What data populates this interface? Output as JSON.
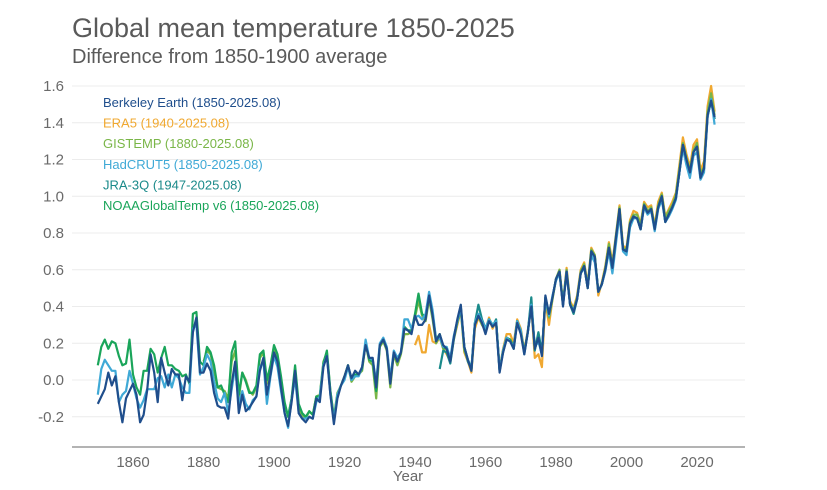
{
  "chart_data": {
    "type": "line",
    "title": "Global mean temperature 1850-2025",
    "subtitle": "Difference from 1850-1900 average",
    "xlabel": "Year",
    "ylabel": "",
    "xlim": [
      1843,
      2033
    ],
    "ylim": [
      -0.37,
      1.65
    ],
    "xticks": [
      1860,
      1880,
      1900,
      1920,
      1940,
      1960,
      1980,
      2000,
      2020
    ],
    "yticks": [
      -0.2,
      0.0,
      0.2,
      0.4,
      0.6,
      0.8,
      1.0,
      1.2,
      1.4,
      1.6
    ],
    "ytick_labels": [
      "-0.2",
      "0.0",
      "0.2",
      "0.4",
      "0.6",
      "0.8",
      "1.0",
      "1.2",
      "1.4",
      "1.6"
    ],
    "grid": "horizontal",
    "legend_position": "top-left",
    "series": [
      {
        "name": "ERA5 (1940-2025.08)",
        "color": "#f0a830",
        "start_year": 1940,
        "values": [
          0.19,
          0.24,
          0.15,
          0.15,
          0.3,
          0.21,
          0.2,
          0.23,
          0.17,
          0.14,
          0.1,
          0.22,
          0.3,
          0.38,
          0.15,
          0.1,
          0.04,
          0.28,
          0.34,
          0.3,
          0.27,
          0.34,
          0.28,
          0.32,
          0.06,
          0.17,
          0.25,
          0.25,
          0.2,
          0.33,
          0.28,
          0.16,
          0.27,
          0.4,
          0.12,
          0.14,
          0.07,
          0.43,
          0.3,
          0.44,
          0.55,
          0.6,
          0.42,
          0.61,
          0.43,
          0.39,
          0.46,
          0.6,
          0.64,
          0.52,
          0.72,
          0.68,
          0.46,
          0.53,
          0.62,
          0.75,
          0.64,
          0.79,
          0.95,
          0.73,
          0.72,
          0.87,
          0.92,
          0.91,
          0.85,
          0.97,
          0.94,
          0.95,
          0.84,
          0.97,
          1.02,
          0.89,
          0.93,
          0.97,
          1.02,
          1.17,
          1.32,
          1.23,
          1.16,
          1.28,
          1.31,
          1.14,
          1.19,
          1.49,
          1.6,
          1.46
        ]
      },
      {
        "name": "GISTEMP (1880-2025.08)",
        "color": "#7ab648",
        "start_year": 1880,
        "values": [
          0.1,
          0.16,
          0.14,
          0.05,
          -0.04,
          -0.05,
          -0.06,
          -0.1,
          0.1,
          0.16,
          -0.1,
          0.04,
          0.0,
          -0.06,
          -0.08,
          -0.04,
          0.12,
          0.15,
          -0.02,
          0.07,
          0.18,
          0.12,
          0.0,
          -0.13,
          -0.2,
          -0.1,
          0.05,
          -0.16,
          -0.19,
          -0.21,
          -0.17,
          -0.19,
          -0.09,
          -0.08,
          0.1,
          0.15,
          -0.06,
          -0.2,
          -0.07,
          -0.03,
          0.02,
          0.08,
          -0.01,
          0.02,
          0.03,
          0.05,
          0.2,
          0.1,
          0.08,
          -0.1,
          0.18,
          0.21,
          0.16,
          -0.04,
          0.14,
          0.08,
          0.14,
          0.25,
          0.25,
          0.26,
          0.34,
          0.43,
          0.35,
          0.32,
          0.44,
          0.33,
          0.2,
          0.24,
          0.17,
          0.17,
          0.1,
          0.23,
          0.31,
          0.38,
          0.16,
          0.11,
          0.05,
          0.3,
          0.35,
          0.3,
          0.27,
          0.33,
          0.3,
          0.32,
          0.06,
          0.15,
          0.23,
          0.22,
          0.18,
          0.32,
          0.27,
          0.15,
          0.26,
          0.41,
          0.18,
          0.22,
          0.15,
          0.44,
          0.34,
          0.44,
          0.55,
          0.6,
          0.42,
          0.6,
          0.42,
          0.38,
          0.45,
          0.59,
          0.63,
          0.51,
          0.71,
          0.68,
          0.48,
          0.52,
          0.61,
          0.74,
          0.62,
          0.78,
          0.94,
          0.72,
          0.71,
          0.86,
          0.9,
          0.9,
          0.84,
          0.96,
          0.92,
          0.94,
          0.83,
          0.95,
          1.01,
          0.88,
          0.92,
          0.95,
          1.01,
          1.15,
          1.29,
          1.21,
          1.14,
          1.25,
          1.29,
          1.12,
          1.16,
          1.46,
          1.56,
          1.44
        ]
      },
      {
        "name": "NOAAGlobalTemp v6 (1850-2025.08)",
        "color": "#1aa55a",
        "start_year": 1850,
        "values": [
          0.08,
          0.18,
          0.22,
          0.17,
          0.21,
          0.2,
          0.13,
          0.08,
          0.09,
          0.22,
          0.03,
          -0.04,
          -0.08,
          0.05,
          0.05,
          0.17,
          0.14,
          0.04,
          0.12,
          0.18,
          0.08,
          0.08,
          0.06,
          0.05,
          0.02,
          0.03,
          -0.02,
          0.36,
          0.37,
          0.1,
          0.08,
          0.18,
          0.15,
          0.08,
          -0.04,
          -0.03,
          -0.08,
          -0.12,
          0.15,
          0.21,
          -0.08,
          0.04,
          -0.01,
          -0.07,
          -0.07,
          -0.03,
          0.14,
          0.16,
          0.0,
          0.08,
          0.19,
          0.14,
          0.02,
          -0.12,
          -0.2,
          -0.1,
          0.08,
          -0.13,
          -0.18,
          -0.2,
          -0.17,
          -0.19,
          -0.09,
          -0.09,
          0.09,
          0.16,
          -0.06,
          -0.21,
          -0.08,
          -0.03,
          0.02,
          0.08,
          0.0,
          0.03,
          0.03,
          0.06,
          0.2,
          0.11,
          0.1,
          -0.06,
          0.19,
          0.22,
          0.17,
          0.0,
          0.15,
          0.1,
          0.15,
          0.29,
          0.27,
          0.27,
          0.36,
          0.47,
          0.36,
          0.34,
          0.47,
          0.36,
          0.22,
          0.25,
          0.18,
          0.17,
          0.11,
          0.23,
          0.32,
          0.4,
          0.18,
          0.11,
          0.06,
          0.31,
          0.36,
          0.32,
          0.27,
          0.33,
          0.3,
          0.32,
          0.05,
          0.16,
          0.23,
          0.22,
          0.18,
          0.32,
          0.26,
          0.15,
          0.26,
          0.42,
          0.17,
          0.23,
          0.14,
          0.45,
          0.35,
          0.45,
          0.55,
          0.59,
          0.41,
          0.59,
          0.41,
          0.37,
          0.44,
          0.58,
          0.62,
          0.5,
          0.7,
          0.67,
          0.48,
          0.52,
          0.6,
          0.72,
          0.61,
          0.77,
          0.93,
          0.71,
          0.7,
          0.85,
          0.89,
          0.88,
          0.82,
          0.95,
          0.91,
          0.93,
          0.82,
          0.94,
          1.0,
          0.86,
          0.9,
          0.94,
          0.99,
          1.13,
          1.28,
          1.2,
          1.13,
          1.24,
          1.27,
          1.1,
          1.15,
          1.44,
          1.52,
          1.42
        ]
      },
      {
        "name": "JRA-3Q (1947-2025.08)",
        "color": "#1a8a8a",
        "start_year": 1947,
        "values": [
          0.06,
          0.16,
          0.15,
          0.09,
          0.22,
          0.32,
          0.39,
          0.18,
          0.1,
          0.06,
          0.31,
          0.41,
          0.33,
          0.28,
          0.33,
          0.29,
          0.33,
          0.05,
          0.16,
          0.23,
          0.21,
          0.17,
          0.32,
          0.26,
          0.15,
          0.26,
          0.45,
          0.16,
          0.26,
          0.15,
          0.45,
          0.36,
          0.45,
          0.55,
          0.59,
          0.41,
          0.59,
          0.41,
          0.36,
          0.44,
          0.58,
          0.62,
          0.5,
          0.7,
          0.67,
          0.48,
          0.52,
          0.6,
          0.72,
          0.61,
          0.78,
          0.93,
          0.71,
          0.7,
          0.85,
          0.89,
          0.88,
          0.82,
          0.95,
          0.91,
          0.93,
          0.82,
          0.94,
          1.0,
          0.86,
          0.9,
          0.94,
          0.99,
          1.13,
          1.28,
          1.2,
          1.13,
          1.24,
          1.27,
          1.1,
          1.15,
          1.44,
          1.52,
          1.42
        ]
      },
      {
        "name": "HadCRUT5 (1850-2025.08)",
        "color": "#3fa9d6",
        "start_year": 1850,
        "values": [
          -0.08,
          0.06,
          0.11,
          0.08,
          0.05,
          0.05,
          -0.12,
          -0.08,
          -0.06,
          0.05,
          -0.02,
          -0.1,
          -0.15,
          -0.11,
          -0.05,
          -0.05,
          -0.05,
          0.01,
          0.02,
          -0.04,
          0.03,
          -0.04,
          0.03,
          0.01,
          -0.04,
          -0.07,
          -0.07,
          0.28,
          0.3,
          0.03,
          0.07,
          0.14,
          0.1,
          -0.01,
          -0.1,
          -0.12,
          -0.07,
          -0.18,
          -0.05,
          0.07,
          -0.13,
          -0.06,
          -0.13,
          -0.16,
          -0.11,
          -0.09,
          0.07,
          0.1,
          -0.13,
          0.02,
          0.13,
          0.07,
          -0.06,
          -0.18,
          -0.26,
          -0.11,
          0.01,
          -0.18,
          -0.21,
          -0.21,
          -0.2,
          -0.21,
          -0.12,
          -0.09,
          0.08,
          0.13,
          -0.08,
          -0.22,
          -0.08,
          -0.03,
          0.0,
          0.07,
          0.0,
          0.02,
          0.02,
          0.07,
          0.22,
          0.12,
          0.11,
          -0.01,
          0.2,
          0.23,
          0.18,
          0.01,
          0.16,
          0.12,
          0.15,
          0.33,
          0.33,
          0.28,
          0.34,
          0.35,
          0.33,
          0.36,
          0.48,
          0.38,
          0.22,
          0.23,
          0.18,
          0.18,
          0.12,
          0.24,
          0.32,
          0.39,
          0.18,
          0.11,
          0.06,
          0.31,
          0.36,
          0.32,
          0.28,
          0.33,
          0.3,
          0.32,
          0.05,
          0.16,
          0.23,
          0.21,
          0.18,
          0.32,
          0.27,
          0.14,
          0.26,
          0.41,
          0.18,
          0.21,
          0.14,
          0.44,
          0.35,
          0.46,
          0.54,
          0.58,
          0.41,
          0.59,
          0.41,
          0.38,
          0.44,
          0.58,
          0.61,
          0.51,
          0.68,
          0.64,
          0.48,
          0.52,
          0.59,
          0.7,
          0.58,
          0.74,
          0.9,
          0.7,
          0.68,
          0.83,
          0.88,
          0.88,
          0.82,
          0.94,
          0.9,
          0.92,
          0.81,
          0.93,
          0.98,
          0.86,
          0.89,
          0.93,
          0.98,
          1.13,
          1.26,
          1.17,
          1.1,
          1.22,
          1.24,
          1.09,
          1.13,
          1.43,
          1.53,
          1.39
        ]
      },
      {
        "name": "Berkeley Earth (1850-2025.08)",
        "color": "#1f4e8c",
        "start_year": 1850,
        "values": [
          -0.13,
          -0.09,
          -0.05,
          0.04,
          -0.03,
          0.02,
          -0.12,
          -0.23,
          -0.1,
          -0.06,
          -0.02,
          -0.08,
          -0.23,
          -0.19,
          -0.06,
          0.14,
          0.04,
          -0.12,
          0.12,
          0.04,
          -0.03,
          0.06,
          0.03,
          0.03,
          -0.11,
          0.02,
          -0.01,
          0.26,
          0.34,
          0.04,
          0.04,
          0.09,
          0.05,
          -0.07,
          -0.14,
          -0.15,
          -0.15,
          -0.21,
          -0.02,
          0.1,
          -0.18,
          -0.08,
          -0.17,
          -0.15,
          -0.12,
          -0.09,
          0.05,
          0.12,
          -0.08,
          0.03,
          0.15,
          0.1,
          -0.04,
          -0.18,
          -0.25,
          -0.12,
          0.05,
          -0.18,
          -0.21,
          -0.23,
          -0.2,
          -0.21,
          -0.1,
          -0.12,
          0.07,
          0.13,
          -0.08,
          -0.24,
          -0.1,
          -0.03,
          0.02,
          0.08,
          0.01,
          0.05,
          0.03,
          0.07,
          0.19,
          0.12,
          0.12,
          -0.04,
          0.19,
          0.22,
          0.17,
          -0.02,
          0.15,
          0.1,
          0.15,
          0.28,
          0.27,
          0.25,
          0.35,
          0.3,
          0.3,
          0.33,
          0.46,
          0.35,
          0.21,
          0.25,
          0.19,
          0.17,
          0.1,
          0.23,
          0.33,
          0.41,
          0.18,
          0.11,
          0.05,
          0.3,
          0.35,
          0.31,
          0.25,
          0.32,
          0.29,
          0.31,
          0.04,
          0.15,
          0.22,
          0.21,
          0.17,
          0.31,
          0.25,
          0.14,
          0.26,
          0.4,
          0.17,
          0.23,
          0.13,
          0.46,
          0.36,
          0.45,
          0.55,
          0.59,
          0.4,
          0.59,
          0.41,
          0.37,
          0.44,
          0.58,
          0.62,
          0.5,
          0.7,
          0.67,
          0.48,
          0.52,
          0.6,
          0.72,
          0.61,
          0.77,
          0.93,
          0.71,
          0.7,
          0.85,
          0.89,
          0.88,
          0.82,
          0.95,
          0.91,
          0.93,
          0.82,
          0.94,
          1.0,
          0.86,
          0.9,
          0.94,
          0.99,
          1.13,
          1.28,
          1.2,
          1.13,
          1.24,
          1.27,
          1.1,
          1.15,
          1.44,
          1.52,
          1.43
        ]
      }
    ],
    "legend_order": [
      "Berkeley Earth (1850-2025.08)",
      "ERA5 (1940-2025.08)",
      "GISTEMP (1880-2025.08)",
      "HadCRUT5 (1850-2025.08)",
      "JRA-3Q (1947-2025.08)",
      "NOAAGlobalTemp v6 (1850-2025.08)"
    ]
  }
}
